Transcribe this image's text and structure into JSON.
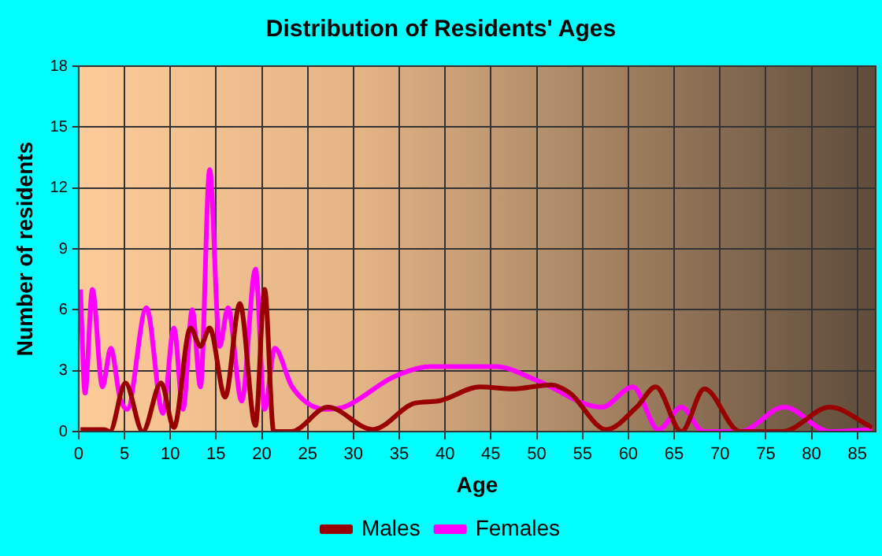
{
  "chart_data": {
    "type": "line",
    "title": "Distribution of Residents' Ages",
    "xlabel": "Age",
    "ylabel": "Number of residents",
    "xlim": [
      0,
      87
    ],
    "xticks": [
      0,
      5,
      10,
      15,
      20,
      25,
      30,
      35,
      40,
      45,
      50,
      55,
      60,
      65,
      70,
      75,
      80,
      85
    ],
    "ylim": [
      0,
      18
    ],
    "yticks": [
      0,
      3,
      6,
      9,
      12,
      15,
      18
    ],
    "grid": true,
    "legend": "bottom",
    "marker": "none",
    "series": [
      {
        "name": "Males",
        "color": "#990000",
        "x": [
          0.2,
          2.8,
          3.4,
          5.1,
          7,
          9,
          10.4,
          12.2,
          13.3,
          14.3,
          16,
          17.6,
          19.3,
          20.3,
          21.3,
          23.2,
          27.2,
          32.1,
          36.7,
          39.2,
          43.8,
          47.3,
          51.6,
          53.6,
          57.6,
          60.9,
          63,
          65.8,
          68.3,
          72.2,
          76.8,
          82,
          86.6
        ],
        "values": [
          0.1,
          0.1,
          0,
          2.4,
          0,
          2.4,
          0.2,
          5.1,
          4.2,
          5.1,
          1.7,
          6.3,
          0.3,
          7,
          0,
          0,
          1.2,
          0.1,
          1.4,
          1.5,
          2.2,
          2.1,
          2.3,
          1.9,
          0.1,
          1.2,
          2.2,
          0,
          2.1,
          0,
          0,
          1.2,
          0.2
        ]
      },
      {
        "name": "Females",
        "color": "#ff00ff",
        "x": [
          0.2,
          0.7,
          1.5,
          2.6,
          3.5,
          4.5,
          5.3,
          7.4,
          9.2,
          10.4,
          11.4,
          12.4,
          13.3,
          14.3,
          15.4,
          16.3,
          17.8,
          19.3,
          20.3,
          21.4,
          23.3,
          26.9,
          28.9,
          34.4,
          38.4,
          45.6,
          50.1,
          57.1,
          60.5,
          63.3,
          65.8,
          68.2,
          72.2,
          77,
          82,
          86.6
        ],
        "values": [
          7,
          1.9,
          7,
          2.2,
          4.1,
          1.7,
          1.1,
          6.1,
          0.9,
          5.1,
          1.1,
          6,
          2.2,
          12.9,
          4.2,
          6.1,
          1.5,
          8,
          1.1,
          4.1,
          2.2,
          1.1,
          1.2,
          2.7,
          3.2,
          3.2,
          2.5,
          1.2,
          2.2,
          0.1,
          1.2,
          0,
          0,
          1.2,
          0,
          0.1
        ]
      }
    ]
  }
}
